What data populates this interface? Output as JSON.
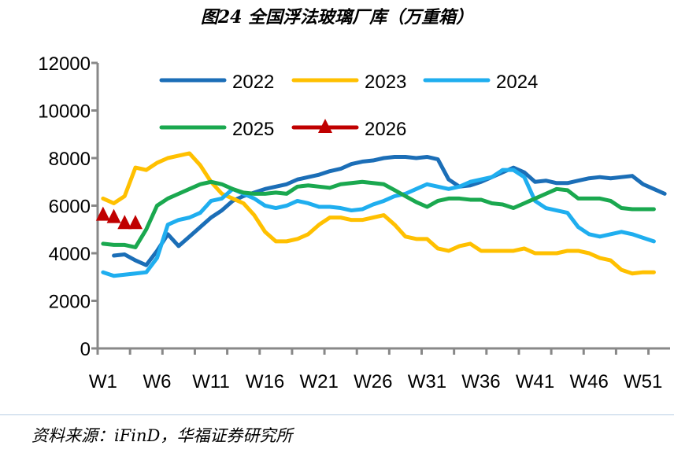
{
  "title": "图24 全国浮法玻璃厂库（万重箱）",
  "source": "资料来源：iFinD，华福证券研究所",
  "chart_data": {
    "type": "line",
    "title": "图24 全国浮法玻璃厂库（万重箱）",
    "xlabel": "",
    "ylabel": "",
    "ylim": [
      0,
      12000
    ],
    "yticks": [
      "0",
      "2000",
      "4000",
      "6000",
      "8000",
      "10000",
      "12000"
    ],
    "xticklabels": [
      "W1",
      "W6",
      "W11",
      "W16",
      "W21",
      "W26",
      "W31",
      "W36",
      "W41",
      "W46",
      "W51"
    ],
    "legend": "top",
    "grid": false,
    "series": [
      {
        "name": "2022",
        "color": "#1B6EB7",
        "start_week": 2,
        "values": [
          3900,
          3950,
          3700,
          3500,
          4100,
          4800,
          4300,
          4700,
          5100,
          5500,
          5800,
          6200,
          6400,
          6550,
          6700,
          6800,
          6900,
          7100,
          7200,
          7300,
          7450,
          7550,
          7750,
          7850,
          7900,
          8000,
          8050,
          8050,
          8000,
          8050,
          7950,
          7100,
          6800,
          6850,
          7000,
          7200,
          7400,
          7600,
          7400,
          7000,
          7050,
          6950,
          6950,
          7050,
          7150,
          7200,
          7150,
          7200,
          7250,
          6900,
          6700,
          6500
        ]
      },
      {
        "name": "2023",
        "color": "#FFC000",
        "start_week": 1,
        "values": [
          6300,
          6100,
          6400,
          7600,
          7500,
          7800,
          8000,
          8100,
          8200,
          7700,
          7000,
          6500,
          6300,
          6100,
          5600,
          4900,
          4500,
          4500,
          4600,
          4800,
          5200,
          5500,
          5500,
          5400,
          5400,
          5500,
          5600,
          5200,
          4700,
          4600,
          4600,
          4200,
          4100,
          4300,
          4400,
          4100,
          4100,
          4100,
          4100,
          4200,
          4000,
          4000,
          4000,
          4100,
          4100,
          4000,
          3800,
          3700,
          3300,
          3150,
          3200,
          3200
        ]
      },
      {
        "name": "2024",
        "color": "#1FAEEF",
        "start_week": 1,
        "values": [
          3200,
          3050,
          3100,
          3150,
          3200,
          3800,
          5200,
          5400,
          5500,
          5700,
          6200,
          6300,
          6700,
          6500,
          6300,
          6000,
          5900,
          6000,
          6200,
          6100,
          5950,
          5950,
          5900,
          5800,
          5850,
          6050,
          6200,
          6400,
          6500,
          6700,
          6900,
          6800,
          6700,
          6800,
          7000,
          7100,
          7200,
          7500,
          7500,
          7200,
          6200,
          5900,
          5800,
          5700,
          5100,
          4800,
          4700,
          4800,
          4900,
          4800,
          4650,
          4500
        ]
      },
      {
        "name": "2025",
        "color": "#1AA84F",
        "start_week": 1,
        "values": [
          4400,
          4350,
          4350,
          4250,
          5000,
          6000,
          6300,
          6500,
          6700,
          6900,
          7000,
          6900,
          6700,
          6550,
          6500,
          6500,
          6550,
          6500,
          6800,
          6850,
          6800,
          6750,
          6900,
          6950,
          7000,
          6950,
          6900,
          6650,
          6400,
          6150,
          5950,
          6200,
          6300,
          6300,
          6250,
          6250,
          6100,
          6050,
          5900,
          6100,
          6300,
          6500,
          6700,
          6650,
          6300,
          6300,
          6300,
          6200,
          5900,
          5850,
          5850,
          5850
        ]
      },
      {
        "name": "2026",
        "color": "#C00000",
        "start_week": 1,
        "marker": "triangle",
        "values": [
          5600,
          5500,
          5250,
          5250
        ]
      }
    ]
  }
}
